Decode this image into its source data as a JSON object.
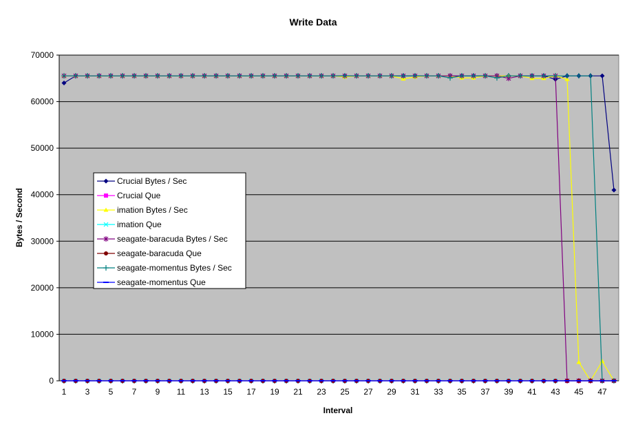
{
  "chart_data": {
    "type": "line",
    "title": "Write Data",
    "xlabel": "Interval",
    "ylabel": "Bytes / Second",
    "ylim": [
      0,
      70000
    ],
    "y_ticks": [
      0,
      10000,
      20000,
      30000,
      40000,
      50000,
      60000,
      70000
    ],
    "x_range": [
      1,
      48
    ],
    "x_tick_labels": [
      "1",
      "3",
      "5",
      "7",
      "9",
      "11",
      "13",
      "15",
      "17",
      "19",
      "21",
      "23",
      "25",
      "27",
      "29",
      "31",
      "33",
      "35",
      "37",
      "39",
      "41",
      "43",
      "45",
      "47"
    ],
    "grid": "horizontal",
    "plot_background": "#c0c0c0",
    "legend_position": "left-middle",
    "series": [
      {
        "name": "Crucial Bytes / Sec",
        "color": "#000080",
        "marker": "diamond",
        "values": [
          64000,
          65536,
          65536,
          65536,
          65536,
          65536,
          65536,
          65536,
          65536,
          65536,
          65536,
          65536,
          65536,
          65536,
          65536,
          65536,
          65536,
          65536,
          65536,
          65536,
          65536,
          65536,
          65536,
          65536,
          65536,
          65536,
          65536,
          65536,
          65536,
          65536,
          65536,
          65536,
          65536,
          65536,
          65536,
          65536,
          65536,
          65536,
          65536,
          65536,
          65536,
          65536,
          64800,
          65536,
          65536,
          65536,
          65536,
          41000
        ]
      },
      {
        "name": "Crucial Que",
        "color": "#ff00ff",
        "marker": "square",
        "values": [
          0,
          0,
          0,
          0,
          0,
          0,
          0,
          0,
          0,
          0,
          0,
          0,
          0,
          0,
          0,
          0,
          0,
          0,
          0,
          0,
          0,
          0,
          0,
          0,
          0,
          0,
          0,
          0,
          0,
          0,
          0,
          0,
          0,
          0,
          0,
          0,
          0,
          0,
          0,
          0,
          0,
          0,
          0,
          0,
          0,
          0,
          0,
          0
        ]
      },
      {
        "name": "imation Bytes / Sec",
        "color": "#ffff00",
        "marker": "triangle",
        "values": [
          65536,
          65536,
          65536,
          65536,
          65536,
          65536,
          65536,
          65536,
          65536,
          65536,
          65536,
          65536,
          65536,
          65536,
          65536,
          65536,
          65536,
          65536,
          65536,
          65536,
          65536,
          65536,
          65536,
          65536,
          65300,
          65536,
          65536,
          65536,
          65536,
          64900,
          65300,
          65536,
          65536,
          65536,
          65100,
          65100,
          65536,
          65536,
          65536,
          65536,
          65000,
          65000,
          65536,
          64800,
          4000,
          0,
          4200,
          0
        ]
      },
      {
        "name": "imation Que",
        "color": "#00ffff",
        "marker": "x",
        "values": [
          0,
          0,
          0,
          0,
          0,
          0,
          0,
          0,
          0,
          0,
          0,
          0,
          0,
          0,
          0,
          0,
          0,
          0,
          0,
          0,
          0,
          0,
          0,
          0,
          0,
          0,
          0,
          0,
          0,
          0,
          0,
          0,
          0,
          0,
          0,
          0,
          0,
          0,
          0,
          0,
          0,
          0,
          0,
          0,
          0,
          0,
          0,
          0
        ]
      },
      {
        "name": "seagate-baracuda Bytes / Sec",
        "color": "#800080",
        "marker": "star",
        "values": [
          65536,
          65536,
          65536,
          65536,
          65536,
          65536,
          65536,
          65536,
          65536,
          65536,
          65536,
          65536,
          65536,
          65536,
          65536,
          65536,
          65536,
          65536,
          65536,
          65536,
          65536,
          65536,
          65536,
          65536,
          65536,
          65536,
          65536,
          65536,
          65536,
          65536,
          65536,
          65536,
          65536,
          65536,
          65536,
          65536,
          65536,
          65536,
          65000,
          65536,
          65536,
          65536,
          65536,
          0,
          0,
          0,
          0,
          0
        ]
      },
      {
        "name": "seagate-baracuda Que",
        "color": "#800000",
        "marker": "circle",
        "values": [
          0,
          0,
          0,
          0,
          0,
          0,
          0,
          0,
          0,
          0,
          0,
          0,
          0,
          0,
          0,
          0,
          0,
          0,
          0,
          0,
          0,
          0,
          0,
          0,
          0,
          0,
          0,
          0,
          0,
          0,
          0,
          0,
          0,
          0,
          0,
          0,
          0,
          0,
          0,
          0,
          0,
          0,
          0,
          0,
          0,
          0,
          0,
          0
        ]
      },
      {
        "name": "seagate-momentus Bytes / Sec",
        "color": "#008080",
        "marker": "plus",
        "values": [
          65536,
          65536,
          65536,
          65536,
          65536,
          65536,
          65536,
          65536,
          65536,
          65536,
          65536,
          65536,
          65536,
          65536,
          65536,
          65536,
          65536,
          65536,
          65536,
          65536,
          65536,
          65536,
          65536,
          65536,
          65536,
          65536,
          65536,
          65536,
          65536,
          65536,
          65536,
          65536,
          65536,
          65100,
          65536,
          65536,
          65536,
          65100,
          65536,
          65536,
          65536,
          65536,
          65536,
          65536,
          65536,
          65536,
          0,
          0
        ]
      },
      {
        "name": "seagate-momentus Que",
        "color": "#0000ff",
        "marker": "dash",
        "values": [
          0,
          0,
          0,
          0,
          0,
          0,
          0,
          0,
          0,
          0,
          0,
          0,
          0,
          0,
          0,
          0,
          0,
          0,
          0,
          0,
          0,
          0,
          0,
          0,
          0,
          0,
          0,
          0,
          0,
          0,
          0,
          0,
          0,
          0,
          0,
          0,
          0,
          0,
          0,
          0,
          0,
          0,
          0,
          0,
          0,
          0,
          0,
          0
        ]
      }
    ]
  }
}
